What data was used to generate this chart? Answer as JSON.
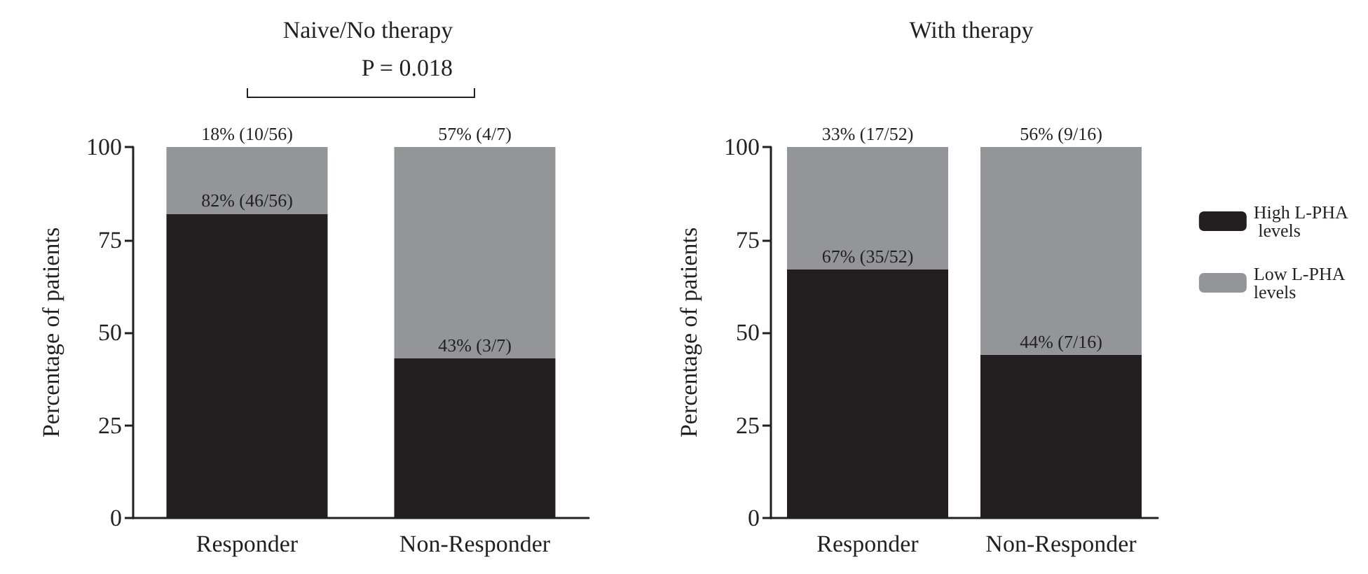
{
  "chart_data": [
    {
      "type": "bar",
      "title": "Naive/No therapy",
      "categories": [
        "Responder",
        "Non-Responder"
      ],
      "ylabel": "Percentage of patients",
      "stacked": true,
      "ylim": [
        0,
        100
      ],
      "yticks": [
        0,
        25,
        50,
        75,
        100
      ],
      "legend": false,
      "annotations": [
        "P = 0.018"
      ],
      "series": [
        {
          "color": "#231f20",
          "values": [
            82,
            43
          ],
          "value_labels": [
            "82% (46/56)",
            "43% (3/7)"
          ]
        },
        {
          "color": "#939598",
          "values": [
            18,
            57
          ],
          "value_labels": [
            "18% (10/56)",
            "57% (4/7)"
          ]
        }
      ]
    },
    {
      "type": "bar",
      "title": "With therapy",
      "categories": [
        "Responder",
        "Non-Responder"
      ],
      "ylabel": "Percentage of patients",
      "stacked": true,
      "ylim": [
        0,
        100
      ],
      "yticks": [
        0,
        25,
        50,
        75,
        100
      ],
      "legend": "right",
      "series": [
        {
          "name": "High L-PHA levels",
          "color": "#231f20",
          "values": [
            67,
            44
          ],
          "value_labels": [
            "67% (35/52)",
            "44% (7/16)"
          ]
        },
        {
          "name": "Low L-PHA levels",
          "color": "#939598",
          "values": [
            33,
            56
          ],
          "value_labels": [
            "33% (17/52)",
            "56% (9/16)"
          ]
        }
      ]
    }
  ]
}
